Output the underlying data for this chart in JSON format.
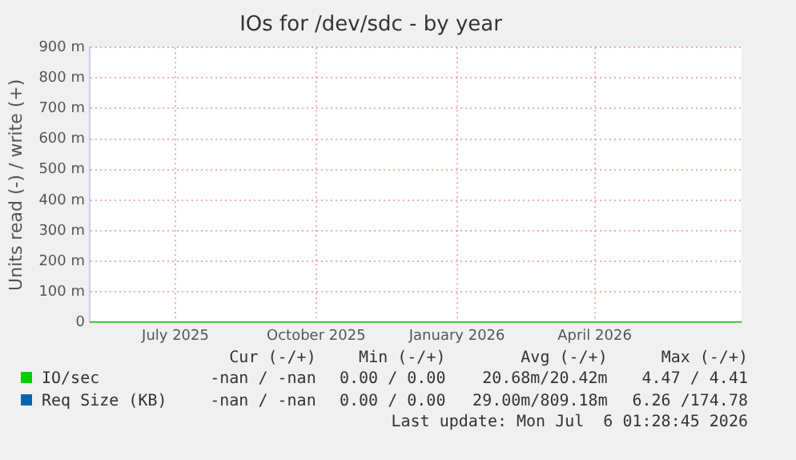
{
  "chart_data": {
    "type": "line",
    "title": "IOs for /dev/sdc - by year",
    "ylabel": "Units read (-) / write (+)",
    "x": [
      "2025-05-06",
      "2026-07-06"
    ],
    "xlim": [
      "2025-05-06",
      "2026-07-06"
    ],
    "xticks": [
      {
        "value": "2025-07-01",
        "label": "July 2025"
      },
      {
        "value": "2025-10-01",
        "label": "October 2025"
      },
      {
        "value": "2026-01-01",
        "label": "January 2026"
      },
      {
        "value": "2026-04-01",
        "label": "April 2026"
      }
    ],
    "ylim": [
      0,
      900
    ],
    "yticks": [
      0,
      {
        "value": 100,
        "label": "100 m"
      },
      {
        "value": 200,
        "label": "200 m"
      },
      {
        "value": 300,
        "label": "300 m"
      },
      {
        "value": 400,
        "label": "400 m"
      },
      {
        "value": 500,
        "label": "500 m"
      },
      {
        "value": 600,
        "label": "600 m"
      },
      {
        "value": 700,
        "label": "700 m"
      },
      {
        "value": 800,
        "label": "800 m"
      },
      {
        "value": 900,
        "label": "900 m"
      }
    ],
    "grid": true,
    "legend": "bottom",
    "marker": "none",
    "series": [
      {
        "name": "IO/sec",
        "color": "#00cc00",
        "values": [
          0,
          0
        ]
      },
      {
        "name": "Req Size (KB)",
        "color": "#0066b3",
        "values": [
          null,
          null
        ]
      }
    ],
    "annotations": [
      "Cur (-/+)",
      "Min (-/+)",
      "Avg (-/+)",
      "Max (-/+)",
      "-nan / -nan",
      "0.00 / 0.00",
      "20.68m/20.42m",
      "4.47 / 4.41",
      "-nan / -nan",
      "0.00 / 0.00",
      "29.00m/809.18m",
      "6.26 /174.78",
      "Last update: Mon Jul  6 01:28:45 2026"
    ]
  }
}
